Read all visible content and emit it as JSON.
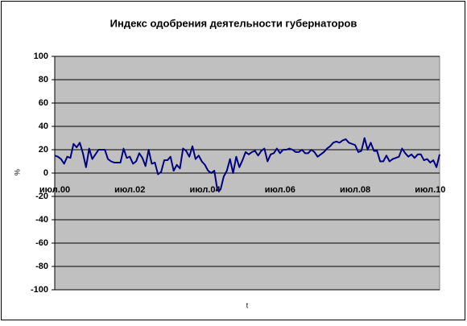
{
  "chart_data": {
    "type": "line",
    "title": "Индекс одобрения деятельности губернаторов",
    "x_label": "t",
    "y_label": "%",
    "categories": [
      "июл.00",
      null,
      null,
      null,
      null,
      null,
      null,
      null,
      null,
      null,
      null,
      null,
      null,
      null,
      null,
      null,
      null,
      null,
      null,
      null,
      null,
      null,
      null,
      null,
      "июл.02",
      null,
      null,
      null,
      null,
      null,
      null,
      null,
      null,
      null,
      null,
      null,
      null,
      null,
      null,
      null,
      null,
      null,
      null,
      null,
      null,
      null,
      null,
      null,
      "июл.04",
      null,
      null,
      null,
      null,
      null,
      null,
      null,
      null,
      null,
      null,
      null,
      null,
      null,
      null,
      null,
      null,
      null,
      null,
      null,
      null,
      null,
      null,
      null,
      "июл.06",
      null,
      null,
      null,
      null,
      null,
      null,
      null,
      null,
      null,
      null,
      null,
      null,
      null,
      null,
      null,
      null,
      null,
      null,
      null,
      null,
      null,
      null,
      null,
      "июл.08",
      null,
      null,
      null,
      null,
      null,
      null,
      null,
      null,
      null,
      null,
      null,
      null,
      null,
      null,
      null,
      null,
      null,
      null,
      null,
      null,
      null,
      null,
      null,
      "июл.10",
      null,
      null,
      null
    ],
    "values": [
      15,
      14,
      12,
      8,
      14,
      13,
      25,
      22,
      26,
      17,
      5,
      21,
      12,
      16,
      20,
      20,
      20,
      12,
      10,
      9,
      9,
      9,
      21,
      13,
      14,
      8,
      10,
      17,
      13,
      6,
      20,
      8,
      9,
      -1,
      1,
      11,
      11,
      14,
      2,
      7,
      4,
      21,
      19,
      14,
      23,
      12,
      15,
      10,
      7,
      2,
      0,
      2,
      -15,
      -14,
      -3,
      2,
      12,
      0,
      14,
      5,
      11,
      18,
      16,
      18,
      19,
      15,
      19,
      21,
      10,
      16,
      17,
      21,
      17,
      20,
      20,
      21,
      20,
      18,
      18,
      20,
      17,
      17,
      20,
      18,
      14,
      16,
      18,
      21,
      23,
      26,
      27,
      26,
      28,
      29,
      26,
      25,
      24,
      18,
      19,
      30,
      20,
      26,
      19,
      19,
      10,
      10,
      15,
      10,
      12,
      13,
      14,
      21,
      17,
      14,
      16,
      13,
      16,
      16,
      11,
      12,
      9,
      11,
      5,
      16
    ],
    "color": "#000080",
    "ylim": [
      -100,
      100
    ],
    "yticks": [
      -100,
      -80,
      -60,
      -40,
      -20,
      0,
      20,
      40,
      60,
      80,
      100
    ],
    "grid": true,
    "plot_background": "#c0c0c0"
  }
}
